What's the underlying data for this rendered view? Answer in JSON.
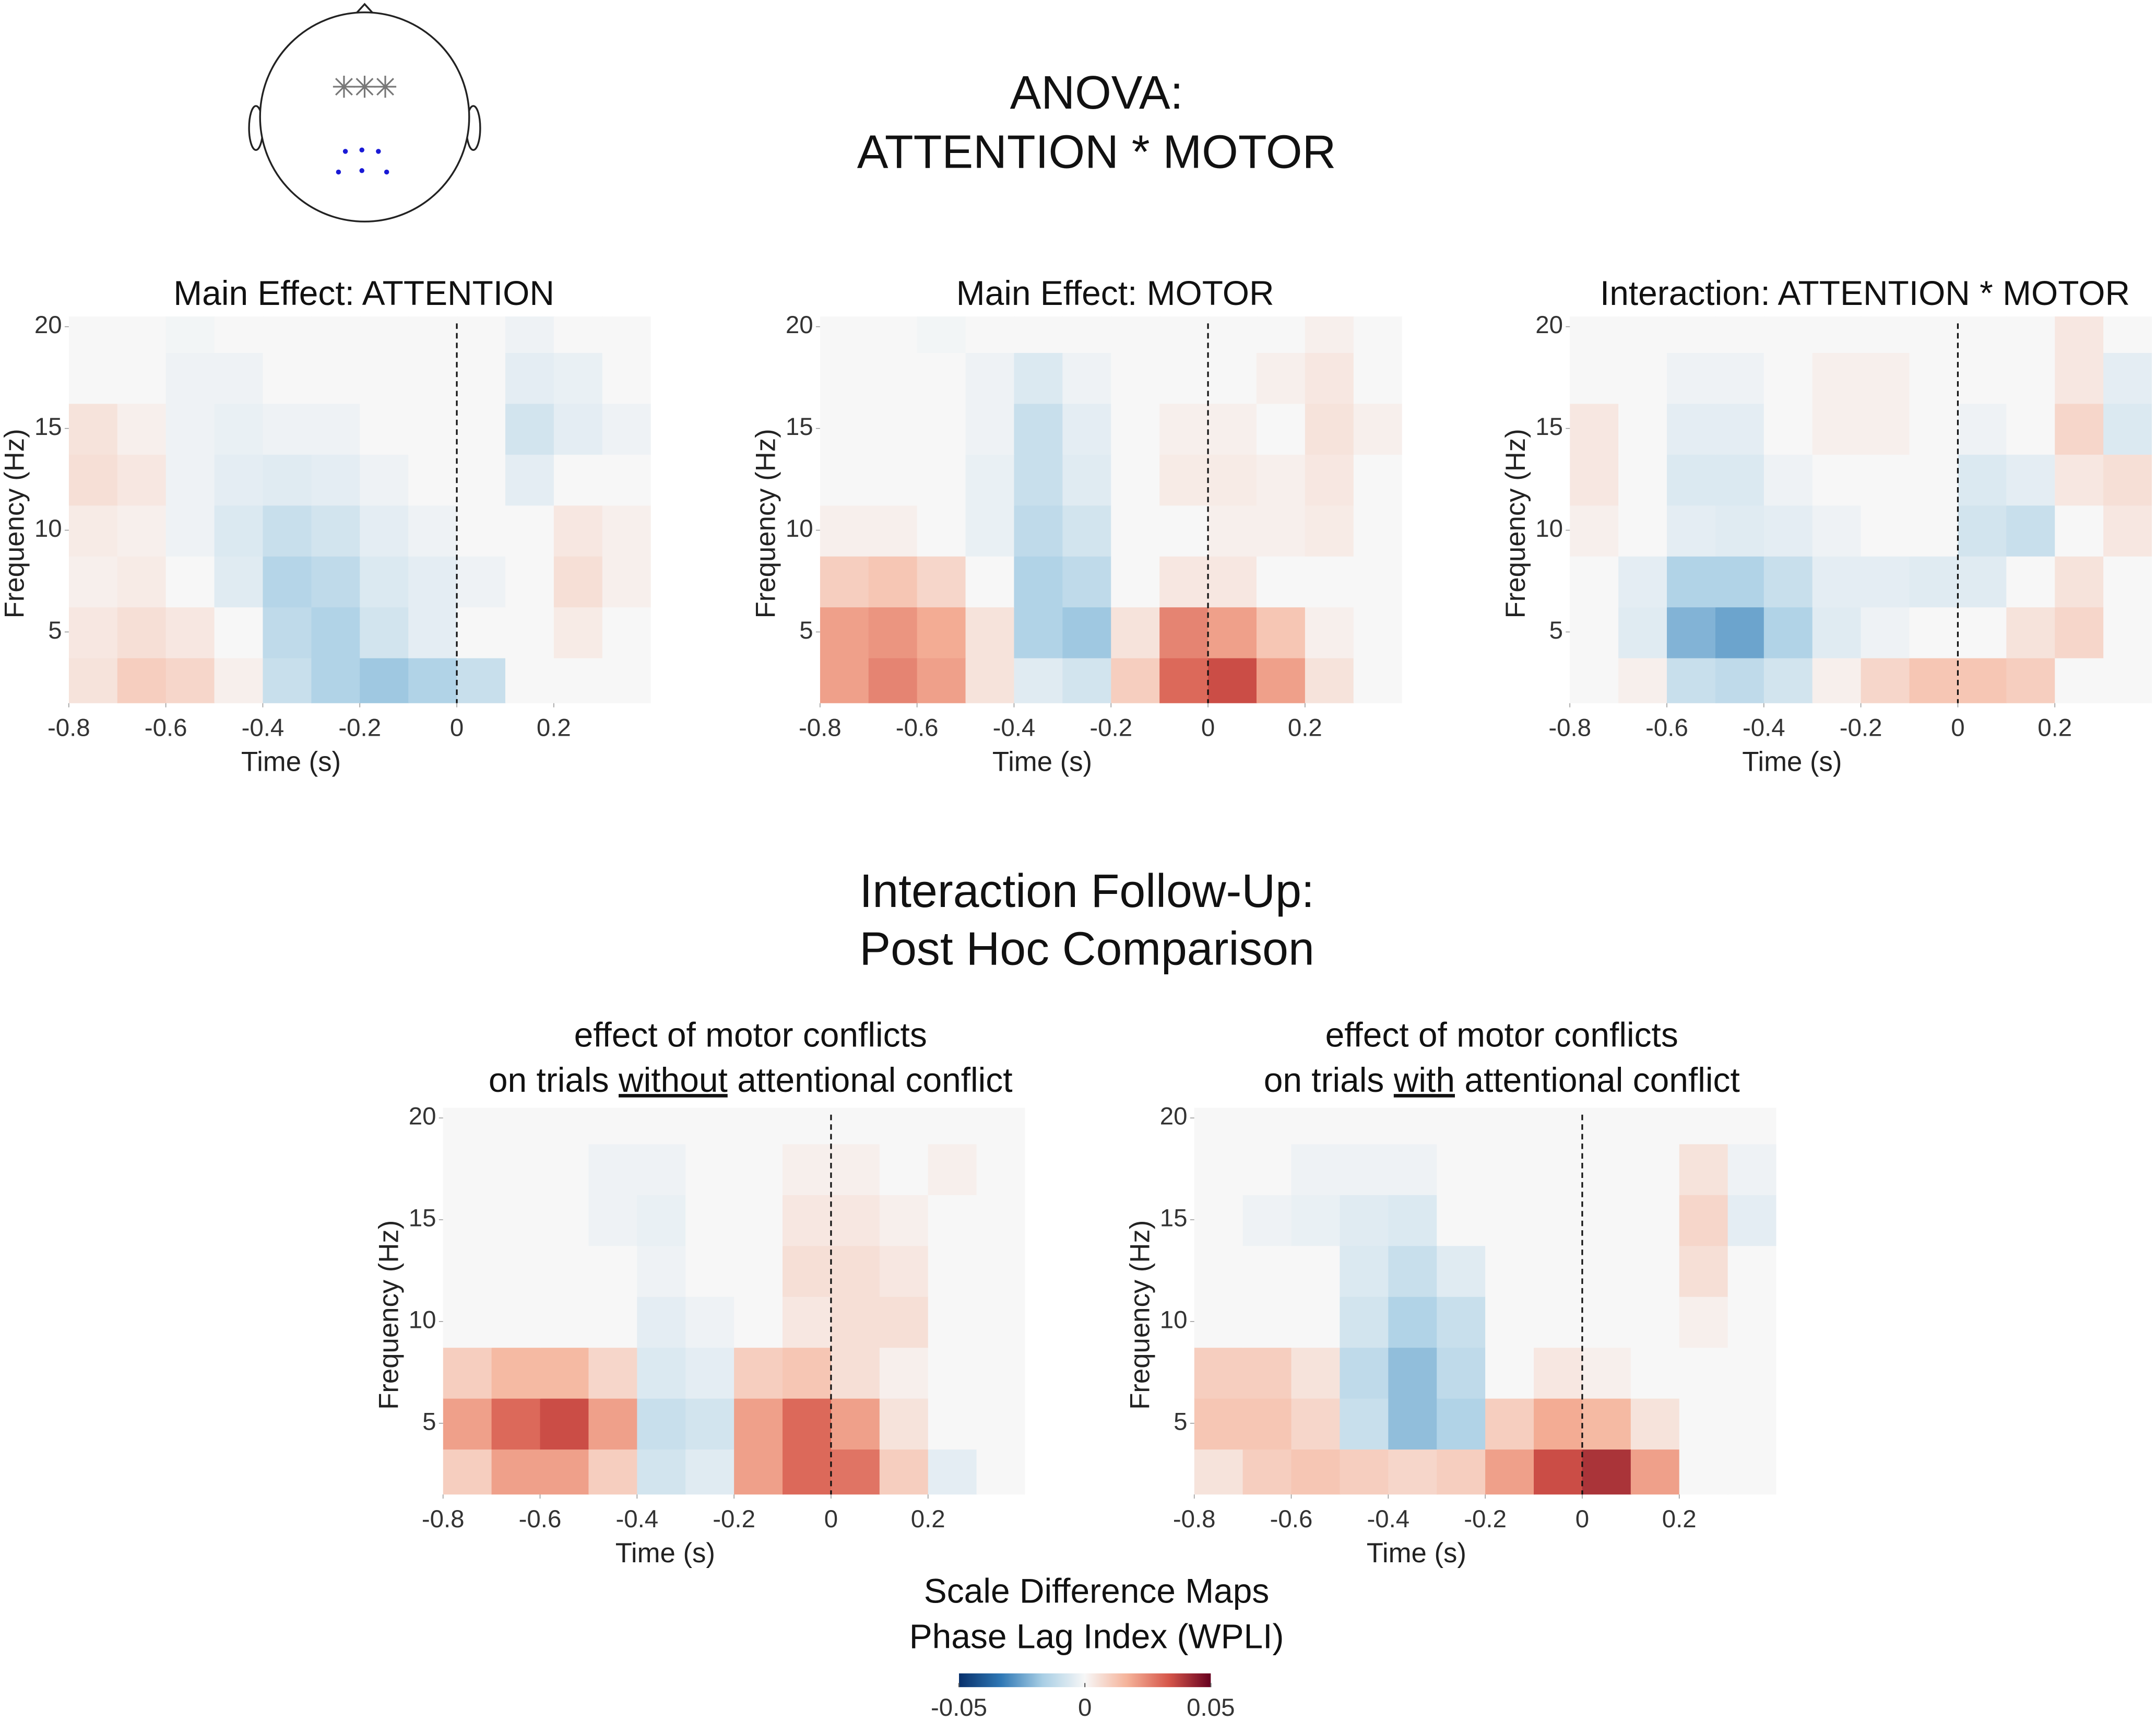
{
  "header": {
    "title": [
      "ANOVA:",
      "ATTENTION * MOTOR"
    ]
  },
  "section_title": [
    "Interaction Follow-Up:",
    "Post Hoc Comparison"
  ],
  "colorbar": {
    "title": [
      "Scale Difference Maps",
      "Phase Lag Index (WPLI)"
    ],
    "clim": [
      -0.05,
      0.05
    ],
    "ticks": [
      -0.05,
      0,
      0.05
    ],
    "colormap": [
      "#08306b",
      "#2f78b5",
      "#a9cfe5",
      "#f7f7f7",
      "#f5b39a",
      "#d6564a",
      "#67001f"
    ]
  },
  "chart_data": [
    {
      "type": "heatmap",
      "title": "Main Effect: ATTENTION",
      "xlabel": "Time (s)",
      "ylabel": "Frequency (Hz)",
      "x": [
        -0.75,
        -0.65,
        -0.55,
        -0.45,
        -0.35,
        -0.25,
        -0.15,
        -0.05,
        0.05,
        0.15,
        0.25,
        0.35
      ],
      "y": [
        2.5,
        5,
        7.5,
        10,
        12.5,
        15,
        17.5,
        20
      ],
      "z": [
        [
          0.005,
          0.01,
          0.008,
          0.002,
          -0.01,
          -0.015,
          -0.018,
          -0.015,
          -0.01,
          0,
          0,
          0
        ],
        [
          0.004,
          0.006,
          0.004,
          0,
          -0.012,
          -0.015,
          -0.008,
          -0.004,
          0,
          0,
          0.003,
          0
        ],
        [
          0.002,
          0.003,
          0,
          -0.005,
          -0.014,
          -0.012,
          -0.006,
          -0.004,
          -0.002,
          0,
          0.006,
          0.002
        ],
        [
          0.003,
          0.002,
          -0.002,
          -0.006,
          -0.01,
          -0.008,
          -0.004,
          -0.002,
          0,
          0,
          0.004,
          0.002
        ],
        [
          0.006,
          0.004,
          -0.002,
          -0.004,
          -0.005,
          -0.004,
          -0.002,
          0,
          0,
          -0.004,
          0,
          0
        ],
        [
          0.005,
          0.002,
          -0.002,
          -0.003,
          -0.002,
          -0.002,
          0,
          0,
          0,
          -0.008,
          -0.004,
          -0.002
        ],
        [
          0,
          0,
          -0.002,
          -0.002,
          0,
          0,
          0,
          0,
          0,
          -0.004,
          -0.003,
          0
        ],
        [
          0,
          0,
          -0.001,
          0,
          0,
          0,
          0,
          0,
          0,
          -0.002,
          0,
          0
        ]
      ],
      "xlim": [
        -0.8,
        0.4
      ],
      "xticks": [
        -0.8,
        -0.6,
        -0.4,
        -0.2,
        0,
        0.2
      ],
      "ylim": [
        1.5,
        20.5
      ],
      "yticks": [
        5,
        10,
        15,
        20
      ],
      "vline": 0
    },
    {
      "type": "heatmap",
      "title": "Main Effect: MOTOR",
      "xlabel": "Time (s)",
      "ylabel": "Frequency (Hz)",
      "x": [
        -0.75,
        -0.65,
        -0.55,
        -0.45,
        -0.35,
        -0.25,
        -0.15,
        -0.05,
        0.05,
        0.15,
        0.25,
        0.35
      ],
      "y": [
        2.5,
        5,
        7.5,
        10,
        12.5,
        15,
        17.5,
        20
      ],
      "z": [
        [
          0.02,
          0.025,
          0.02,
          0.005,
          -0.005,
          -0.008,
          0.01,
          0.03,
          0.035,
          0.02,
          0.005,
          0
        ],
        [
          0.02,
          0.022,
          0.018,
          0.005,
          -0.015,
          -0.018,
          0.005,
          0.025,
          0.02,
          0.012,
          0.002,
          0
        ],
        [
          0.01,
          0.012,
          0.008,
          0,
          -0.015,
          -0.012,
          0,
          0.004,
          0.004,
          0,
          0,
          0
        ],
        [
          0.002,
          0.002,
          0,
          -0.003,
          -0.012,
          -0.008,
          0,
          0,
          0.002,
          0.002,
          0.003,
          0
        ],
        [
          0,
          0,
          0,
          -0.003,
          -0.01,
          -0.005,
          0,
          0.003,
          0.003,
          0.002,
          0.004,
          0
        ],
        [
          0,
          0,
          0,
          -0.002,
          -0.01,
          -0.004,
          0,
          0.002,
          0.002,
          0,
          0.005,
          0.002
        ],
        [
          0,
          0,
          0,
          -0.002,
          -0.006,
          -0.002,
          0,
          0,
          0,
          0.002,
          0.004,
          0
        ],
        [
          0,
          0,
          -0.001,
          0,
          0,
          0,
          0,
          0,
          0,
          0,
          0.002,
          0
        ]
      ],
      "xlim": [
        -0.8,
        0.4
      ],
      "xticks": [
        -0.8,
        -0.6,
        -0.4,
        -0.2,
        0,
        0.2
      ],
      "ylim": [
        1.5,
        20.5
      ],
      "yticks": [
        5,
        10,
        15,
        20
      ],
      "vline": 0
    },
    {
      "type": "heatmap",
      "title": "Interaction: ATTENTION * MOTOR",
      "xlabel": "Time (s)",
      "ylabel": "Frequency (Hz)",
      "x": [
        -0.75,
        -0.65,
        -0.55,
        -0.45,
        -0.35,
        -0.25,
        -0.15,
        -0.05,
        0.05,
        0.15,
        0.25,
        0.35
      ],
      "y": [
        2.5,
        5,
        7.5,
        10,
        12.5,
        15,
        17.5,
        20
      ],
      "z": [
        [
          0,
          0.002,
          -0.01,
          -0.012,
          -0.008,
          0.002,
          0.008,
          0.012,
          0.012,
          0.01,
          0,
          0
        ],
        [
          0,
          -0.005,
          -0.022,
          -0.025,
          -0.015,
          -0.005,
          -0.002,
          0,
          0,
          0.005,
          0.008,
          0
        ],
        [
          0,
          -0.004,
          -0.015,
          -0.015,
          -0.01,
          -0.004,
          -0.004,
          -0.005,
          -0.005,
          0,
          0.005,
          0
        ],
        [
          0.002,
          0,
          -0.004,
          -0.005,
          -0.004,
          -0.002,
          0,
          0,
          -0.008,
          -0.01,
          0,
          0.004
        ],
        [
          0.004,
          0,
          -0.006,
          -0.006,
          -0.002,
          0,
          0,
          0,
          -0.006,
          -0.004,
          0.004,
          0.006
        ],
        [
          0.004,
          0,
          -0.004,
          -0.004,
          0,
          0.002,
          0.002,
          0,
          -0.002,
          0,
          0.008,
          -0.006
        ],
        [
          0,
          0,
          -0.002,
          -0.002,
          0,
          0.002,
          0.002,
          0,
          0,
          0,
          0.004,
          -0.004
        ],
        [
          0,
          0,
          0,
          0,
          0,
          0,
          0,
          0,
          0,
          0,
          0.004,
          0
        ]
      ],
      "xlim": [
        -0.8,
        0.4
      ],
      "xticks": [
        -0.8,
        -0.6,
        -0.4,
        -0.2,
        0,
        0.2
      ],
      "ylim": [
        1.5,
        20.5
      ],
      "yticks": [
        5,
        10,
        15,
        20
      ],
      "vline": 0
    },
    {
      "type": "heatmap",
      "title": [
        "effect of motor conflicts",
        [
          "on trials",
          "without",
          "attentional conflict"
        ]
      ],
      "title_underline": 1,
      "xlabel": "Time (s)",
      "ylabel": "Frequency (Hz)",
      "x": [
        -0.75,
        -0.65,
        -0.55,
        -0.45,
        -0.35,
        -0.25,
        -0.15,
        -0.05,
        0.05,
        0.15,
        0.25,
        0.35
      ],
      "y": [
        2.5,
        5,
        7.5,
        10,
        12.5,
        15,
        17.5,
        20
      ],
      "z": [
        [
          0.01,
          0.02,
          0.02,
          0.01,
          -0.008,
          -0.005,
          0.02,
          0.03,
          0.028,
          0.01,
          -0.004,
          0
        ],
        [
          0.02,
          0.03,
          0.035,
          0.02,
          -0.01,
          -0.008,
          0.02,
          0.03,
          0.02,
          0.005,
          0,
          0
        ],
        [
          0.01,
          0.015,
          0.015,
          0.008,
          -0.006,
          -0.004,
          0.01,
          0.012,
          0.006,
          0.002,
          0,
          0
        ],
        [
          0,
          0,
          0,
          0,
          -0.004,
          -0.002,
          0,
          0.004,
          0.006,
          0.006,
          0,
          0
        ],
        [
          0,
          0,
          0,
          0,
          -0.002,
          0,
          0,
          0.006,
          0.006,
          0.004,
          0,
          0
        ],
        [
          0,
          0,
          0,
          -0.002,
          -0.003,
          0,
          0,
          0.004,
          0.004,
          0.002,
          0,
          0
        ],
        [
          0,
          0,
          0,
          -0.002,
          -0.002,
          0,
          0,
          0.002,
          0.002,
          0,
          0.002,
          0
        ],
        [
          0,
          0,
          0,
          0,
          0,
          0,
          0,
          0,
          0,
          0,
          0,
          0
        ]
      ],
      "xlim": [
        -0.8,
        0.4
      ],
      "xticks": [
        -0.8,
        -0.6,
        -0.4,
        -0.2,
        0,
        0.2
      ],
      "ylim": [
        1.5,
        20.5
      ],
      "yticks": [
        5,
        10,
        15,
        20
      ],
      "vline": 0
    },
    {
      "type": "heatmap",
      "title": [
        "effect of motor conflicts",
        [
          "on trials",
          "with",
          "attentional conflict"
        ]
      ],
      "title_underline": 1,
      "xlabel": "Time (s)",
      "ylabel": "Frequency (Hz)",
      "x": [
        -0.75,
        -0.65,
        -0.55,
        -0.45,
        -0.35,
        -0.25,
        -0.15,
        -0.05,
        0.05,
        0.15,
        0.25,
        0.35
      ],
      "y": [
        2.5,
        5,
        7.5,
        10,
        12.5,
        15,
        17.5,
        20
      ],
      "z": [
        [
          0.005,
          0.01,
          0.012,
          0.01,
          0.008,
          0.01,
          0.02,
          0.035,
          0.04,
          0.02,
          0,
          0
        ],
        [
          0.012,
          0.012,
          0.008,
          -0.01,
          -0.02,
          -0.015,
          0.01,
          0.018,
          0.015,
          0.005,
          0,
          0
        ],
        [
          0.01,
          0.01,
          0.005,
          -0.012,
          -0.02,
          -0.012,
          0,
          0.004,
          0.002,
          0,
          0,
          0
        ],
        [
          0,
          0,
          0,
          -0.008,
          -0.015,
          -0.01,
          0,
          0,
          0,
          0,
          0.002,
          0
        ],
        [
          0,
          0,
          0,
          -0.006,
          -0.01,
          -0.005,
          0,
          0,
          0,
          0,
          0.006,
          0
        ],
        [
          0,
          -0.002,
          -0.003,
          -0.005,
          -0.006,
          0,
          0,
          0,
          0,
          0,
          0.008,
          -0.004
        ],
        [
          0,
          0,
          -0.002,
          -0.002,
          -0.002,
          0,
          0,
          0,
          0,
          0,
          0.005,
          -0.002
        ],
        [
          0,
          0,
          0,
          0,
          0,
          0,
          0,
          0,
          0,
          0,
          0,
          0
        ]
      ],
      "xlim": [
        -0.8,
        0.4
      ],
      "xticks": [
        -0.8,
        -0.6,
        -0.4,
        -0.2,
        0,
        0.2
      ],
      "ylim": [
        1.5,
        20.5
      ],
      "yticks": [
        5,
        10,
        15,
        20
      ],
      "vline": 0
    }
  ]
}
